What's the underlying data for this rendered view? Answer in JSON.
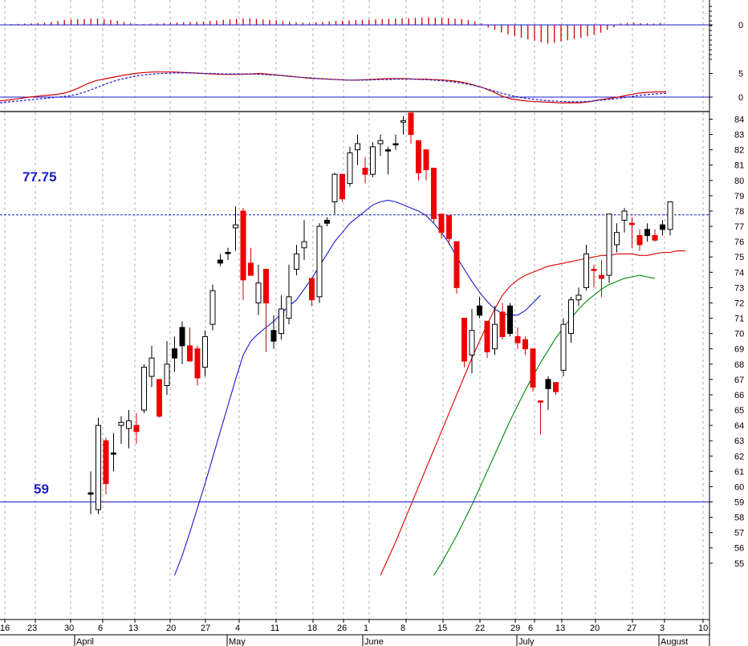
{
  "chart_data": [
    {
      "type": "bar",
      "panel": "histogram",
      "ylim": [
        -9,
        5
      ],
      "y_ticks": [
        "0"
      ],
      "positive_color": "#cc0000",
      "negative_color": "#cc0000",
      "values": [
        0.2,
        0.3,
        0.4,
        0.5,
        0.6,
        0.8,
        0.9,
        1.2,
        1.6,
        2.0,
        2.2,
        2.3,
        2.4,
        2.5,
        2.6,
        2.3,
        2.0,
        1.6,
        1.2,
        0.8,
        0.3,
        0.4,
        0.5,
        0.6,
        0.7,
        0.9,
        1.0,
        1.1,
        1.2,
        1.3,
        1.4,
        1.6,
        1.8,
        2.0,
        2.2,
        2.4,
        2.5,
        2.6,
        2.4,
        2.2,
        2.0,
        1.8,
        1.5,
        1.2,
        1.0,
        0.9,
        0.8,
        1.0,
        1.2,
        1.4,
        1.6,
        1.7,
        1.8,
        1.9,
        2.0,
        2.1,
        2.2,
        2.3,
        2.4,
        2.5,
        2.6,
        2.7,
        2.8,
        2.9,
        3.0,
        2.9,
        2.8,
        2.7,
        2.5,
        2.3,
        1.9,
        1.4,
        0.6,
        -1.0,
        -2.0,
        -3.0,
        -3.8,
        -4.5,
        -5.2,
        -5.8,
        -6.3,
        -7.0,
        -7.6,
        -7.2,
        -6.6,
        -6.2,
        -5.7,
        -5.2,
        -4.6,
        -3.9,
        -3.1,
        -2.0,
        -1.0,
        0.6,
        0.8,
        0.9,
        0.7,
        0.6,
        0.5,
        0.8
      ]
    },
    {
      "type": "line",
      "panel": "oscillator",
      "ylim": [
        -1.5,
        7
      ],
      "y_ticks": [
        "5",
        "0"
      ],
      "zero_line": true,
      "series": [
        {
          "color": "#cc0000",
          "style": "solid",
          "values": [
            -0.8,
            -0.6,
            -0.3,
            0.0,
            0.2,
            0.4,
            0.6,
            1.0,
            1.8,
            2.8,
            3.5,
            3.9,
            4.3,
            4.7,
            5.0,
            5.2,
            5.3,
            5.3,
            5.3,
            5.2,
            5.1,
            5.0,
            4.9,
            4.8,
            4.8,
            4.8,
            4.9,
            5.0,
            4.8,
            4.6,
            4.4,
            4.2,
            4.0,
            3.9,
            3.8,
            3.7,
            3.6,
            3.6,
            3.7,
            3.8,
            3.9,
            3.9,
            3.9,
            3.8,
            3.8,
            3.7,
            3.6,
            3.4,
            3.1,
            2.6,
            2.0,
            1.2,
            0.2,
            -0.4,
            -0.7,
            -0.9,
            -1.0,
            -1.1,
            -1.2,
            -1.2,
            -1.2,
            -1.0,
            -0.6,
            -0.3,
            0.0,
            0.4,
            0.8,
            1.0,
            1.1,
            1.1
          ]
        },
        {
          "color": "#1a1ad0",
          "style": "dashed",
          "values": [
            -1.2,
            -1.0,
            -0.8,
            -0.6,
            -0.4,
            -0.2,
            0.0,
            0.2,
            0.6,
            1.2,
            2.0,
            2.8,
            3.5,
            4.0,
            4.4,
            4.7,
            4.9,
            5.0,
            5.1,
            5.1,
            5.1,
            5.0,
            5.0,
            4.9,
            4.9,
            4.9,
            4.9,
            4.8,
            4.7,
            4.6,
            4.4,
            4.2,
            4.1,
            3.9,
            3.8,
            3.7,
            3.6,
            3.6,
            3.6,
            3.7,
            3.7,
            3.8,
            3.8,
            3.8,
            3.7,
            3.6,
            3.4,
            3.2,
            2.9,
            2.5,
            2.0,
            1.4,
            0.8,
            0.3,
            -0.1,
            -0.4,
            -0.6,
            -0.8,
            -0.9,
            -1.0,
            -1.0,
            -0.9,
            -0.7,
            -0.5,
            -0.3,
            0.0,
            0.3,
            0.5,
            0.7,
            0.8
          ]
        }
      ]
    },
    {
      "type": "candlestick",
      "panel": "price",
      "ylim": [
        54.2,
        84.4
      ],
      "y_ticks": [
        84,
        83,
        82,
        81,
        80,
        79,
        78,
        77,
        76,
        75,
        74,
        73,
        72,
        71,
        70,
        69,
        68,
        67,
        66,
        65,
        64,
        63,
        62,
        61,
        60,
        59,
        58,
        57,
        56,
        55
      ],
      "x_tick_labels": [
        "16",
        "23",
        "30",
        "6",
        "13",
        "20",
        "27",
        "4",
        "11",
        "18",
        "26",
        "1",
        "8",
        "15",
        "22",
        "29",
        "6",
        "13",
        "20",
        "27",
        "3",
        "10"
      ],
      "month_labels": [
        "April",
        "May",
        "June",
        "July",
        "August"
      ],
      "horizontal_levels": [
        {
          "value": 77.75,
          "label": "77.75",
          "color": "#1a1ad0",
          "style": "dashed"
        },
        {
          "value": 59,
          "label": "59",
          "color": "#1a1ad0",
          "style": "solid"
        }
      ],
      "up_color": "#ffffff",
      "down_color": "#ee0000",
      "candles": [
        {
          "o": 59.6,
          "h": 61.0,
          "l": 58.2,
          "c": 59.5,
          "d": "black"
        },
        {
          "o": 58.5,
          "h": 64.5,
          "l": 58.2,
          "c": 64.0,
          "d": "up"
        },
        {
          "o": 63.0,
          "h": 63.2,
          "l": 59.5,
          "c": 60.2,
          "d": "down"
        },
        {
          "o": 62.2,
          "h": 63.5,
          "l": 61.0,
          "c": 62.2,
          "d": "black"
        },
        {
          "o": 64.0,
          "h": 64.6,
          "l": 62.8,
          "c": 64.2,
          "d": "up"
        },
        {
          "o": 63.8,
          "h": 65.0,
          "l": 62.5,
          "c": 64.3,
          "d": "up"
        },
        {
          "o": 64.0,
          "h": 64.8,
          "l": 62.8,
          "c": 63.6,
          "d": "down"
        },
        {
          "o": 65.0,
          "h": 68.0,
          "l": 64.8,
          "c": 67.8,
          "d": "up"
        },
        {
          "o": 67.2,
          "h": 69.2,
          "l": 66.5,
          "c": 68.4,
          "d": "up"
        },
        {
          "o": 67.0,
          "h": 67.0,
          "l": 64.5,
          "c": 64.6,
          "d": "down"
        },
        {
          "o": 66.6,
          "h": 69.5,
          "l": 66.0,
          "c": 68.0,
          "d": "up"
        },
        {
          "o": 68.4,
          "h": 69.8,
          "l": 67.5,
          "c": 69.0,
          "d": "black"
        },
        {
          "o": 69.2,
          "h": 70.8,
          "l": 68.0,
          "c": 70.4,
          "d": "black"
        },
        {
          "o": 69.2,
          "h": 70.4,
          "l": 68.2,
          "c": 68.2,
          "d": "down"
        },
        {
          "o": 69.0,
          "h": 69.2,
          "l": 66.6,
          "c": 67.1,
          "d": "down"
        },
        {
          "o": 67.8,
          "h": 70.2,
          "l": 67.2,
          "c": 69.8,
          "d": "up"
        },
        {
          "o": 70.6,
          "h": 73.2,
          "l": 70.2,
          "c": 72.8,
          "d": "up"
        },
        {
          "o": 74.8,
          "h": 75.2,
          "l": 74.4,
          "c": 74.6,
          "d": "black"
        },
        {
          "o": 75.3,
          "h": 75.6,
          "l": 74.8,
          "c": 75.3,
          "d": "black"
        },
        {
          "o": 77.1,
          "h": 78.3,
          "l": 75.4,
          "c": 76.9,
          "d": "up"
        },
        {
          "o": 78.0,
          "h": 78.2,
          "l": 72.2,
          "c": 73.5,
          "d": "down"
        },
        {
          "o": 74.6,
          "h": 75.6,
          "l": 73.8,
          "c": 73.8,
          "d": "down"
        },
        {
          "o": 72.0,
          "h": 74.5,
          "l": 71.2,
          "c": 73.3,
          "d": "up"
        },
        {
          "o": 74.2,
          "h": 74.2,
          "l": 68.8,
          "c": 72.0,
          "d": "down"
        },
        {
          "o": 70.2,
          "h": 71.2,
          "l": 69.0,
          "c": 69.5,
          "d": "black"
        },
        {
          "o": 70.0,
          "h": 72.5,
          "l": 69.6,
          "c": 71.6,
          "d": "up"
        },
        {
          "o": 71.0,
          "h": 74.5,
          "l": 70.6,
          "c": 72.4,
          "d": "up"
        },
        {
          "o": 74.2,
          "h": 75.8,
          "l": 73.8,
          "c": 75.2,
          "d": "up"
        },
        {
          "o": 75.6,
          "h": 77.4,
          "l": 74.8,
          "c": 76.0,
          "d": "up"
        },
        {
          "o": 73.6,
          "h": 73.6,
          "l": 71.8,
          "c": 72.2,
          "d": "down"
        },
        {
          "o": 72.4,
          "h": 77.2,
          "l": 72.0,
          "c": 77.0,
          "d": "up"
        },
        {
          "o": 77.2,
          "h": 77.6,
          "l": 77.0,
          "c": 77.4,
          "d": "black"
        },
        {
          "o": 78.6,
          "h": 80.5,
          "l": 77.8,
          "c": 80.4,
          "d": "up"
        },
        {
          "o": 80.4,
          "h": 80.4,
          "l": 78.6,
          "c": 78.8,
          "d": "down"
        },
        {
          "o": 79.8,
          "h": 82.2,
          "l": 79.6,
          "c": 81.8,
          "d": "up"
        },
        {
          "o": 82.0,
          "h": 83.0,
          "l": 81.0,
          "c": 82.4,
          "d": "up"
        },
        {
          "o": 80.4,
          "h": 81.5,
          "l": 79.8,
          "c": 80.8,
          "d": "down"
        },
        {
          "o": 80.4,
          "h": 82.5,
          "l": 80.2,
          "c": 82.2,
          "d": "up"
        },
        {
          "o": 82.4,
          "h": 83.0,
          "l": 81.6,
          "c": 82.6,
          "d": "up"
        },
        {
          "o": 82.0,
          "h": 82.2,
          "l": 80.4,
          "c": 82.0,
          "d": "black"
        },
        {
          "o": 82.4,
          "h": 83.0,
          "l": 82.0,
          "c": 82.4,
          "d": "black"
        },
        {
          "o": 83.8,
          "h": 84.2,
          "l": 83.0,
          "c": 83.9,
          "d": "up"
        },
        {
          "o": 84.4,
          "h": 84.4,
          "l": 82.4,
          "c": 83.0,
          "d": "down"
        },
        {
          "o": 82.6,
          "h": 82.6,
          "l": 80.0,
          "c": 80.5,
          "d": "down"
        },
        {
          "o": 82.0,
          "h": 82.0,
          "l": 80.0,
          "c": 80.7,
          "d": "down"
        },
        {
          "o": 80.8,
          "h": 80.8,
          "l": 77.2,
          "c": 77.5,
          "d": "down"
        },
        {
          "o": 77.8,
          "h": 77.8,
          "l": 76.2,
          "c": 76.6,
          "d": "down"
        },
        {
          "o": 77.7,
          "h": 77.7,
          "l": 75.8,
          "c": 76.2,
          "d": "down"
        },
        {
          "o": 76.0,
          "h": 76.0,
          "l": 72.6,
          "c": 73.0,
          "d": "down"
        },
        {
          "o": 71.0,
          "h": 71.0,
          "l": 67.8,
          "c": 68.2,
          "d": "down"
        },
        {
          "o": 68.6,
          "h": 71.6,
          "l": 67.4,
          "c": 70.2,
          "d": "up"
        },
        {
          "o": 71.8,
          "h": 72.4,
          "l": 71.0,
          "c": 71.2,
          "d": "black"
        },
        {
          "o": 70.8,
          "h": 70.8,
          "l": 68.4,
          "c": 68.8,
          "d": "down"
        },
        {
          "o": 69.0,
          "h": 71.8,
          "l": 68.6,
          "c": 70.6,
          "d": "up"
        },
        {
          "o": 71.4,
          "h": 72.0,
          "l": 69.6,
          "c": 69.8,
          "d": "down"
        },
        {
          "o": 70.0,
          "h": 72.0,
          "l": 69.8,
          "c": 71.8,
          "d": "black"
        },
        {
          "o": 69.8,
          "h": 70.4,
          "l": 69.0,
          "c": 69.4,
          "d": "down"
        },
        {
          "o": 69.6,
          "h": 69.8,
          "l": 68.6,
          "c": 69.0,
          "d": "down"
        },
        {
          "o": 69.0,
          "h": 69.0,
          "l": 66.2,
          "c": 66.5,
          "d": "down"
        },
        {
          "o": 65.6,
          "h": 65.6,
          "l": 63.4,
          "c": 65.6,
          "d": "down"
        },
        {
          "o": 66.4,
          "h": 67.2,
          "l": 65.0,
          "c": 67.0,
          "d": "black"
        },
        {
          "o": 66.8,
          "h": 66.8,
          "l": 66.0,
          "c": 66.2,
          "d": "down"
        },
        {
          "o": 67.6,
          "h": 71.0,
          "l": 67.2,
          "c": 70.6,
          "d": "up"
        },
        {
          "o": 70.0,
          "h": 72.4,
          "l": 69.4,
          "c": 72.2,
          "d": "up"
        },
        {
          "o": 72.2,
          "h": 73.0,
          "l": 71.8,
          "c": 72.5,
          "d": "up"
        },
        {
          "o": 73.0,
          "h": 75.8,
          "l": 72.8,
          "c": 75.2,
          "d": "up"
        },
        {
          "o": 74.2,
          "h": 74.5,
          "l": 73.0,
          "c": 74.2,
          "d": "down"
        },
        {
          "o": 73.8,
          "h": 74.8,
          "l": 72.4,
          "c": 73.6,
          "d": "down"
        },
        {
          "o": 73.8,
          "h": 77.8,
          "l": 73.3,
          "c": 77.8,
          "d": "up"
        },
        {
          "o": 75.8,
          "h": 77.2,
          "l": 75.3,
          "c": 76.6,
          "d": "up"
        },
        {
          "o": 77.4,
          "h": 78.2,
          "l": 76.6,
          "c": 78.0,
          "d": "up"
        },
        {
          "o": 77.2,
          "h": 77.6,
          "l": 75.6,
          "c": 77.2,
          "d": "down"
        },
        {
          "o": 76.4,
          "h": 76.8,
          "l": 75.4,
          "c": 75.8,
          "d": "down"
        },
        {
          "o": 76.4,
          "h": 77.2,
          "l": 76.0,
          "c": 76.8,
          "d": "black"
        },
        {
          "o": 76.4,
          "h": 76.8,
          "l": 76.0,
          "c": 76.1,
          "d": "down"
        },
        {
          "o": 76.8,
          "h": 77.4,
          "l": 76.4,
          "c": 77.1,
          "d": "black"
        },
        {
          "o": 76.8,
          "h": 78.6,
          "l": 76.4,
          "c": 78.6,
          "d": "up"
        }
      ],
      "moving_averages": [
        {
          "color": "#1a1ad0",
          "start": 11,
          "values": [
            54.2,
            55.5,
            57.0,
            58.6,
            60.2,
            61.9,
            63.6,
            65.3,
            67.0,
            68.6,
            69.5,
            70.0,
            70.4,
            70.8,
            71.3,
            71.8,
            72.2,
            72.9,
            73.6,
            74.4,
            75.2,
            76.0,
            76.6,
            77.2,
            77.6,
            78.0,
            78.4,
            78.6,
            78.7,
            78.6,
            78.4,
            78.2,
            78.0,
            77.7,
            77.2,
            76.6,
            75.9,
            75.0,
            74.2,
            73.4,
            72.7,
            72.1,
            71.6,
            71.3,
            71.2,
            71.2,
            71.5,
            72.0,
            72.5
          ]
        },
        {
          "color": "#dd0000",
          "start": 38,
          "values": [
            54.2,
            55.3,
            56.4,
            57.6,
            58.8,
            60.0,
            61.2,
            62.4,
            63.6,
            64.8,
            66.0,
            67.2,
            68.4,
            69.5,
            70.6,
            71.6,
            72.5,
            73.1,
            73.5,
            73.8,
            74.0,
            74.2,
            74.4,
            74.5,
            74.6,
            74.7,
            74.8,
            74.9,
            75.0,
            75.1,
            75.1,
            75.2,
            75.2,
            75.2,
            75.1,
            75.1,
            75.2,
            75.3,
            75.3,
            75.4,
            75.4
          ]
        },
        {
          "color": "#008800",
          "start": 45,
          "values": [
            54.2,
            55.0,
            55.9,
            56.8,
            57.8,
            58.8,
            59.9,
            61.0,
            62.1,
            63.2,
            64.3,
            65.3,
            66.3,
            67.2,
            68.1,
            68.9,
            69.7,
            70.4,
            71.0,
            71.6,
            72.1,
            72.5,
            72.9,
            73.2,
            73.4,
            73.6,
            73.7,
            73.8,
            73.7,
            73.6
          ]
        }
      ]
    }
  ]
}
